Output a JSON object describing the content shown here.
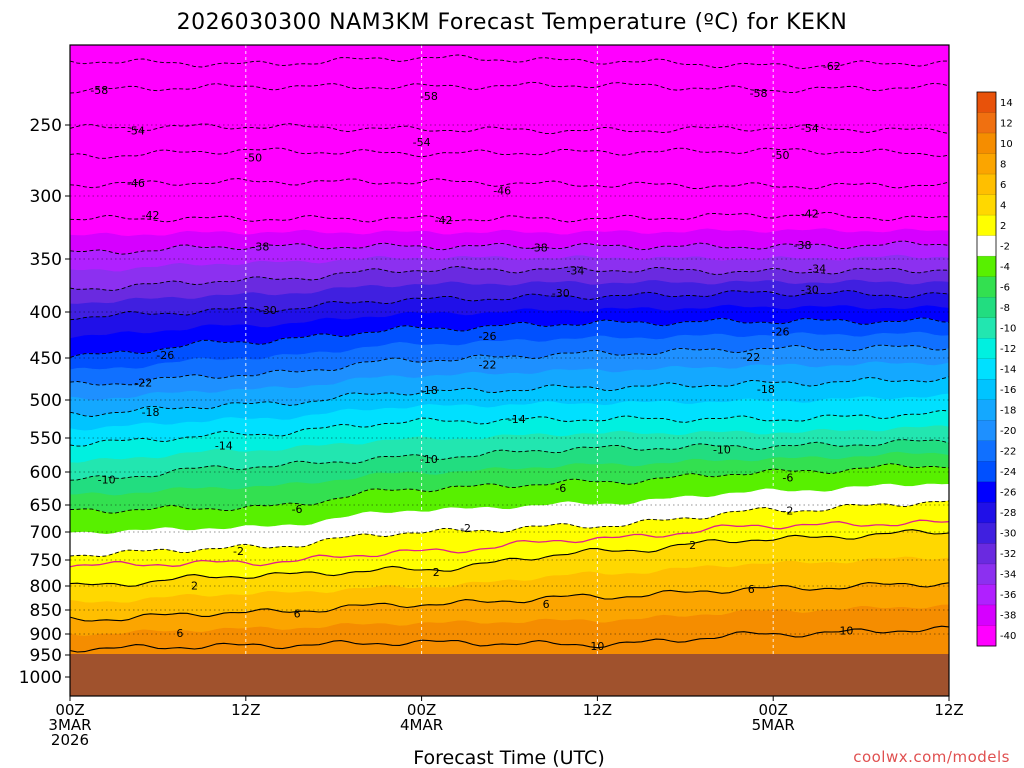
{
  "title": "2026030300 NAM3KM Forecast Temperature (ºC) for KEKN",
  "credit": "coolwx.com/models",
  "chart_data": {
    "type": "time-height contour",
    "title": "2026030300 NAM3KM Forecast Temperature (ºC) for KEKN",
    "xlabel": "Forecast Time (UTC)",
    "ylabel": "Pressure (hPa)",
    "x_ticks": [
      {
        "hour": 0,
        "line1": "00Z",
        "line2": "3MAR",
        "line3": "2026"
      },
      {
        "hour": 12,
        "line1": "12Z",
        "line2": "",
        "line3": ""
      },
      {
        "hour": 24,
        "line1": "00Z",
        "line2": "4MAR",
        "line3": ""
      },
      {
        "hour": 36,
        "line1": "12Z",
        "line2": "",
        "line3": ""
      },
      {
        "hour": 48,
        "line1": "00Z",
        "line2": "5MAR",
        "line3": ""
      },
      {
        "hour": 60,
        "line1": "12Z",
        "line2": "",
        "line3": ""
      }
    ],
    "xlim": [
      0,
      60
    ],
    "y_ticks": [
      250,
      300,
      350,
      400,
      450,
      500,
      550,
      600,
      650,
      700,
      750,
      800,
      850,
      900,
      950,
      1000
    ],
    "ylim": [
      1050,
      200
    ],
    "surface_pressure": 950,
    "colorbar_labels": [
      "14",
      "12",
      "10",
      "8",
      "6",
      "4",
      "2",
      "-2",
      "-4",
      "-6",
      "-8",
      "-10",
      "-12",
      "-14",
      "-16",
      "-18",
      "-20",
      "-22",
      "-24",
      "-26",
      "-28",
      "-30",
      "-32",
      "-34",
      "-36",
      "-38",
      "-40"
    ],
    "colorbar_colors": [
      "#e8520a",
      "#f07010",
      "#f58d00",
      "#fba500",
      "#ffbf00",
      "#ffd800",
      "#ffff00",
      "#ffffff",
      "#58f000",
      "#33e050",
      "#22dd80",
      "#22e6b0",
      "#00f0e0",
      "#00e0ff",
      "#00c4ff",
      "#14a8ff",
      "#1e90ff",
      "#1070ff",
      "#0050ff",
      "#0000ff",
      "#2010e8",
      "#4020e0",
      "#6a2ae0",
      "#8c30f0",
      "#b020ff",
      "#d600ff",
      "#ff00ff"
    ],
    "isotherms": [
      {
        "temp": -62,
        "pressure_profile": [
          [
            0,
            210
          ],
          [
            12,
            212
          ],
          [
            24,
            208
          ],
          [
            36,
            210
          ],
          [
            48,
            213
          ],
          [
            60,
            211
          ]
        ]
      },
      {
        "temp": -58,
        "pressure_profile": [
          [
            0,
            228
          ],
          [
            12,
            226
          ],
          [
            24,
            226
          ],
          [
            36,
            225
          ],
          [
            48,
            228
          ],
          [
            60,
            226
          ]
        ]
      },
      {
        "temp": -54,
        "pressure_profile": [
          [
            0,
            252
          ],
          [
            12,
            251
          ],
          [
            24,
            253
          ],
          [
            36,
            254
          ],
          [
            48,
            252
          ],
          [
            60,
            254
          ]
        ]
      },
      {
        "temp": -50,
        "pressure_profile": [
          [
            0,
            272
          ],
          [
            12,
            268
          ],
          [
            24,
            270
          ],
          [
            36,
            269
          ],
          [
            48,
            268
          ],
          [
            60,
            270
          ]
        ]
      },
      {
        "temp": -46,
        "pressure_profile": [
          [
            0,
            292
          ],
          [
            12,
            290
          ],
          [
            24,
            290
          ],
          [
            36,
            292
          ],
          [
            48,
            293
          ],
          [
            60,
            292
          ]
        ]
      },
      {
        "temp": -42,
        "pressure_profile": [
          [
            0,
            318
          ],
          [
            12,
            318
          ],
          [
            24,
            318
          ],
          [
            36,
            318
          ],
          [
            48,
            315
          ],
          [
            60,
            318
          ]
        ]
      },
      {
        "temp": -38,
        "pressure_profile": [
          [
            0,
            345
          ],
          [
            12,
            340
          ],
          [
            24,
            340
          ],
          [
            36,
            340
          ],
          [
            48,
            340
          ],
          [
            60,
            338
          ]
        ]
      },
      {
        "temp": -34,
        "pressure_profile": [
          [
            0,
            378
          ],
          [
            12,
            370
          ],
          [
            24,
            360
          ],
          [
            36,
            360
          ],
          [
            48,
            362
          ],
          [
            60,
            360
          ]
        ]
      },
      {
        "temp": -30,
        "pressure_profile": [
          [
            0,
            405
          ],
          [
            12,
            398
          ],
          [
            24,
            388
          ],
          [
            36,
            385
          ],
          [
            48,
            382
          ],
          [
            60,
            384
          ]
        ]
      },
      {
        "temp": -26,
        "pressure_profile": [
          [
            0,
            448
          ],
          [
            12,
            432
          ],
          [
            24,
            418
          ],
          [
            36,
            412
          ],
          [
            48,
            410
          ],
          [
            60,
            410
          ]
        ]
      },
      {
        "temp": -22,
        "pressure_profile": [
          [
            0,
            482
          ],
          [
            12,
            470
          ],
          [
            24,
            452
          ],
          [
            36,
            445
          ],
          [
            48,
            440
          ],
          [
            60,
            438
          ]
        ]
      },
      {
        "temp": -18,
        "pressure_profile": [
          [
            0,
            518
          ],
          [
            12,
            506
          ],
          [
            24,
            490
          ],
          [
            36,
            485
          ],
          [
            48,
            480
          ],
          [
            60,
            475
          ]
        ]
      },
      {
        "temp": -14,
        "pressure_profile": [
          [
            0,
            558
          ],
          [
            12,
            545
          ],
          [
            24,
            528
          ],
          [
            36,
            525
          ],
          [
            48,
            525
          ],
          [
            60,
            518
          ]
        ]
      },
      {
        "temp": -10,
        "pressure_profile": [
          [
            0,
            612
          ],
          [
            12,
            592
          ],
          [
            24,
            578
          ],
          [
            36,
            565
          ],
          [
            48,
            562
          ],
          [
            60,
            555
          ]
        ]
      },
      {
        "temp": -6,
        "pressure_profile": [
          [
            0,
            660
          ],
          [
            12,
            655
          ],
          [
            24,
            625
          ],
          [
            36,
            615
          ],
          [
            48,
            600
          ],
          [
            60,
            590
          ]
        ]
      },
      {
        "temp": -2,
        "pressure_profile": [
          [
            0,
            740
          ],
          [
            12,
            728
          ],
          [
            24,
            700
          ],
          [
            36,
            688
          ],
          [
            48,
            660
          ],
          [
            60,
            645
          ]
        ]
      },
      {
        "temp": 0,
        "pressure_profile": [
          [
            0,
            760
          ],
          [
            12,
            755
          ],
          [
            24,
            735
          ],
          [
            36,
            712
          ],
          [
            48,
            688
          ],
          [
            60,
            683
          ]
        ]
      },
      {
        "temp": 2,
        "pressure_profile": [
          [
            0,
            800
          ],
          [
            12,
            780
          ],
          [
            24,
            768
          ],
          [
            36,
            735
          ],
          [
            48,
            712
          ],
          [
            60,
            700
          ]
        ]
      },
      {
        "temp": 6,
        "pressure_profile": [
          [
            0,
            870
          ],
          [
            12,
            855
          ],
          [
            24,
            838
          ],
          [
            36,
            822
          ],
          [
            48,
            805
          ],
          [
            60,
            795
          ]
        ]
      },
      {
        "temp": 10,
        "pressure_profile": [
          [
            0,
            935
          ],
          [
            12,
            928
          ],
          [
            24,
            920
          ],
          [
            36,
            925
          ],
          [
            48,
            900
          ],
          [
            60,
            890
          ]
        ]
      }
    ],
    "contour_labels": [
      {
        "text": "-62",
        "hour": 52,
        "pressure": 213
      },
      {
        "text": "-58",
        "hour": 2,
        "pressure": 228
      },
      {
        "text": "-58",
        "hour": 24.5,
        "pressure": 232
      },
      {
        "text": "-58",
        "hour": 47,
        "pressure": 230
      },
      {
        "text": "-54",
        "hour": 4.5,
        "pressure": 254
      },
      {
        "text": "-54",
        "hour": 24,
        "pressure": 262
      },
      {
        "text": "-54",
        "hour": 50.5,
        "pressure": 252
      },
      {
        "text": "-50",
        "hour": 12.5,
        "pressure": 273
      },
      {
        "text": "-50",
        "hour": 48.5,
        "pressure": 271
      },
      {
        "text": "-46",
        "hour": 4.5,
        "pressure": 291
      },
      {
        "text": "-46",
        "hour": 29.5,
        "pressure": 296
      },
      {
        "text": "-42",
        "hour": 5.5,
        "pressure": 315
      },
      {
        "text": "-42",
        "hour": 25.5,
        "pressure": 319
      },
      {
        "text": "-42",
        "hour": 50.5,
        "pressure": 314
      },
      {
        "text": "-38",
        "hour": 13,
        "pressure": 340
      },
      {
        "text": "-38",
        "hour": 32,
        "pressure": 341
      },
      {
        "text": "-38",
        "hour": 50,
        "pressure": 339
      },
      {
        "text": "-34",
        "hour": 34.5,
        "pressure": 361
      },
      {
        "text": "-34",
        "hour": 51,
        "pressure": 359
      },
      {
        "text": "-30",
        "hour": 13.5,
        "pressure": 398
      },
      {
        "text": "-30",
        "hour": 33.5,
        "pressure": 382
      },
      {
        "text": "-30",
        "hour": 50.5,
        "pressure": 379
      },
      {
        "text": "-26",
        "hour": 6.5,
        "pressure": 447
      },
      {
        "text": "-26",
        "hour": 28.5,
        "pressure": 426
      },
      {
        "text": "-26",
        "hour": 48.5,
        "pressure": 421
      },
      {
        "text": "-22",
        "hour": 5,
        "pressure": 479
      },
      {
        "text": "-22",
        "hour": 28.5,
        "pressure": 458
      },
      {
        "text": "-22",
        "hour": 46.5,
        "pressure": 449
      },
      {
        "text": "-18",
        "hour": 5.5,
        "pressure": 516
      },
      {
        "text": "-18",
        "hour": 24.5,
        "pressure": 488
      },
      {
        "text": "-18",
        "hour": 47.5,
        "pressure": 487
      },
      {
        "text": "-14",
        "hour": 10.5,
        "pressure": 561
      },
      {
        "text": "-14",
        "hour": 30.5,
        "pressure": 525
      },
      {
        "text": "-10",
        "hour": 2.5,
        "pressure": 611
      },
      {
        "text": "-10",
        "hour": 24.5,
        "pressure": 581
      },
      {
        "text": "-10",
        "hour": 44.5,
        "pressure": 567
      },
      {
        "text": "-6",
        "hour": 15.5,
        "pressure": 657
      },
      {
        "text": "-6",
        "hour": 33.5,
        "pressure": 624
      },
      {
        "text": "-6",
        "hour": 49,
        "pressure": 608
      },
      {
        "text": "-2",
        "hour": 11.5,
        "pressure": 734
      },
      {
        "text": "-2",
        "hour": 27,
        "pressure": 693
      },
      {
        "text": "-2",
        "hour": 49,
        "pressure": 660
      },
      {
        "text": "2",
        "hour": 8.5,
        "pressure": 799
      },
      {
        "text": "2",
        "hour": 25,
        "pressure": 773
      },
      {
        "text": "2",
        "hour": 42.5,
        "pressure": 723
      },
      {
        "text": "6",
        "hour": 7.5,
        "pressure": 898
      },
      {
        "text": "6",
        "hour": 15.5,
        "pressure": 857
      },
      {
        "text": "6",
        "hour": 32.5,
        "pressure": 837
      },
      {
        "text": "6",
        "hour": 46.5,
        "pressure": 806
      },
      {
        "text": "10",
        "hour": 36,
        "pressure": 929
      },
      {
        "text": "10",
        "hour": 53,
        "pressure": 893
      }
    ]
  }
}
